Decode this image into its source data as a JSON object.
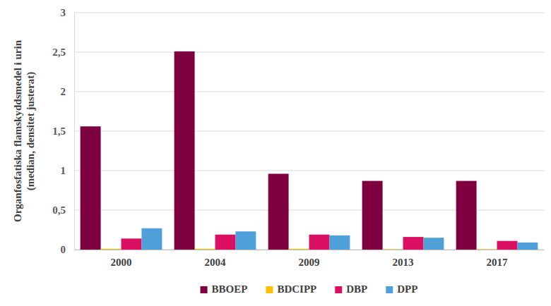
{
  "chart_data": {
    "type": "bar",
    "ylabel": "Organfosfatiska flamskyddsmedel i urin (median, densitet justerat)",
    "categories": [
      "2000",
      "2004",
      "2009",
      "2013",
      "2017"
    ],
    "series": [
      {
        "name": "BBOEP",
        "color": "#7f0041",
        "values": [
          1.56,
          2.51,
          0.96,
          0.87,
          0.87
        ]
      },
      {
        "name": "BDCIPP",
        "color": "#ffc000",
        "values": [
          0.01,
          0.01,
          0.01,
          0.005,
          0.005
        ]
      },
      {
        "name": "DBP",
        "color": "#dc1062",
        "values": [
          0.14,
          0.19,
          0.19,
          0.16,
          0.11
        ]
      },
      {
        "name": "DPP",
        "color": "#4f9fd9",
        "values": [
          0.27,
          0.23,
          0.18,
          0.15,
          0.09
        ]
      }
    ],
    "ylim": [
      0,
      3
    ],
    "yticks": [
      0,
      {
        "value": 0.5,
        "label": "0,5"
      },
      1,
      {
        "value": 1.5,
        "label": "1,5"
      },
      2,
      {
        "value": 2.5,
        "label": "2,5"
      },
      3
    ],
    "grid": true,
    "legend": "bottom"
  }
}
